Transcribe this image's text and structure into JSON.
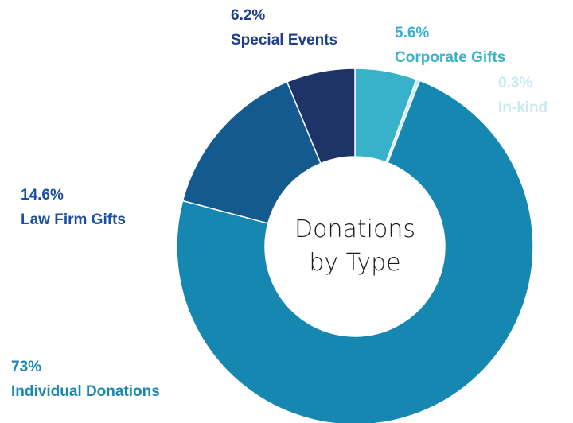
{
  "chart_data": {
    "type": "donut",
    "title": "Donations by Type",
    "categories": [
      "Corporate Gifts",
      "In-kind",
      "Individual Donations",
      "Law Firm Gifts",
      "Special Events"
    ],
    "values": [
      5.6,
      0.3,
      73,
      14.6,
      6.2
    ],
    "value_labels": [
      "5.6%",
      "0.3%",
      "73%",
      "14.6%",
      "6.2%"
    ],
    "colors": [
      "#38b2c8",
      "#c8eaf2",
      "#1587b0",
      "#155a8f",
      "#1e3368"
    ],
    "label_colors": [
      "#38b2c8",
      "#c8eaf2",
      "#1a87b0",
      "#1b4fa0",
      "#1e3f8a"
    ]
  }
}
